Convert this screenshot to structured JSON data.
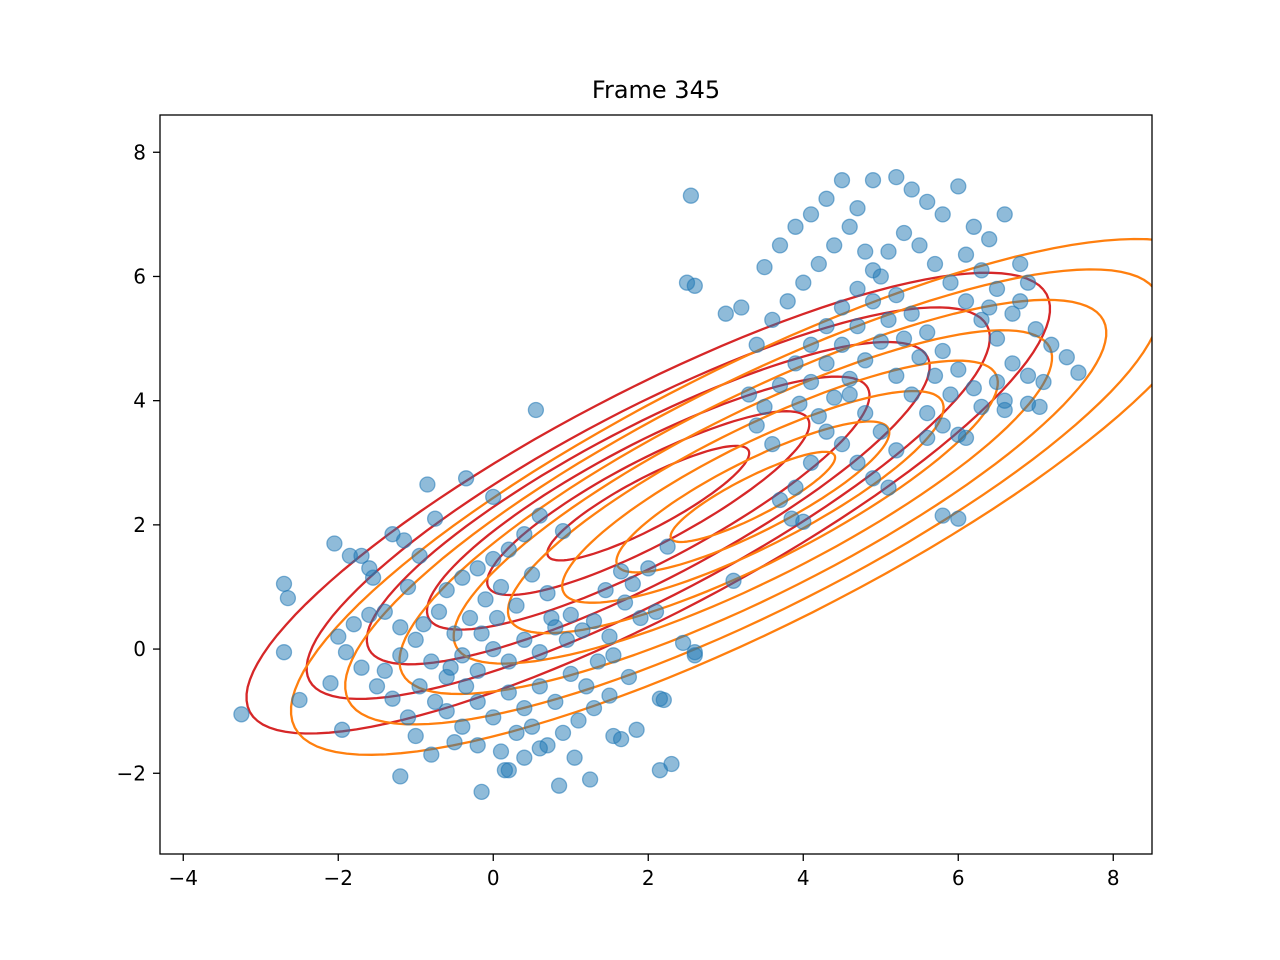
{
  "chart_data": {
    "type": "scatter",
    "title": "Frame 345",
    "xlabel": "",
    "ylabel": "",
    "xlim": [
      -4.3,
      8.5
    ],
    "ylim": [
      -3.3,
      8.6
    ],
    "x_ticks": [
      -4,
      -2,
      0,
      2,
      4,
      6,
      8
    ],
    "y_ticks": [
      -2,
      0,
      2,
      4,
      6,
      8
    ],
    "x_tick_labels": [
      "−4",
      "−2",
      "0",
      "2",
      "4",
      "6",
      "8"
    ],
    "y_tick_labels": [
      "−2",
      "0",
      "2",
      "4",
      "6",
      "8"
    ],
    "grid": false,
    "legend": "none",
    "colors": {
      "points": "#1f77b4",
      "contour_a": "#d62728",
      "contour_b": "#ff7f0e",
      "axes": "#000000"
    },
    "series": [
      {
        "values": [
          [
            -3.25,
            -1.05
          ],
          [
            -2.7,
            1.05
          ],
          [
            -2.65,
            0.82
          ],
          [
            -2.7,
            -0.05
          ],
          [
            -2.5,
            -0.82
          ],
          [
            -2.05,
            1.7
          ],
          [
            -1.85,
            1.5
          ],
          [
            -1.7,
            1.5
          ],
          [
            -1.6,
            1.3
          ],
          [
            -1.55,
            1.15
          ],
          [
            -1.3,
            1.85
          ],
          [
            -1.15,
            1.75
          ],
          [
            -0.95,
            1.5
          ],
          [
            -1.1,
            1.0
          ],
          [
            -0.85,
            2.65
          ],
          [
            -0.75,
            2.1
          ],
          [
            -2.0,
            0.2
          ],
          [
            -1.8,
            0.4
          ],
          [
            -1.6,
            0.55
          ],
          [
            -1.4,
            0.6
          ],
          [
            -1.9,
            -0.05
          ],
          [
            -1.7,
            -0.3
          ],
          [
            -1.5,
            -0.6
          ],
          [
            -1.3,
            -0.8
          ],
          [
            -1.1,
            -1.1
          ],
          [
            -1.0,
            -1.4
          ],
          [
            -0.8,
            -1.7
          ],
          [
            -1.2,
            -2.05
          ],
          [
            -1.95,
            -1.3
          ],
          [
            -2.1,
            -0.55
          ],
          [
            -0.6,
            0.95
          ],
          [
            -0.4,
            1.15
          ],
          [
            -0.2,
            1.3
          ],
          [
            0.0,
            1.45
          ],
          [
            0.2,
            1.6
          ],
          [
            0.4,
            1.85
          ],
          [
            0.6,
            2.15
          ],
          [
            0.9,
            1.9
          ],
          [
            0.0,
            2.45
          ],
          [
            -0.35,
            2.75
          ],
          [
            0.55,
            3.85
          ],
          [
            -0.9,
            0.4
          ],
          [
            -0.7,
            0.6
          ],
          [
            -0.5,
            0.25
          ],
          [
            -0.3,
            0.5
          ],
          [
            -0.1,
            0.8
          ],
          [
            0.1,
            1.0
          ],
          [
            0.3,
            0.7
          ],
          [
            0.5,
            1.2
          ],
          [
            0.7,
            0.9
          ],
          [
            -0.8,
            -0.2
          ],
          [
            -0.6,
            -0.45
          ],
          [
            -0.4,
            -0.1
          ],
          [
            -0.2,
            -0.35
          ],
          [
            0.0,
            0.0
          ],
          [
            0.2,
            -0.2
          ],
          [
            0.4,
            0.15
          ],
          [
            0.6,
            -0.05
          ],
          [
            0.8,
            0.35
          ],
          [
            1.0,
            0.55
          ],
          [
            -0.6,
            -1.0
          ],
          [
            -0.4,
            -1.25
          ],
          [
            -0.2,
            -0.85
          ],
          [
            0.0,
            -1.1
          ],
          [
            0.2,
            -0.7
          ],
          [
            0.4,
            -0.95
          ],
          [
            0.6,
            -0.6
          ],
          [
            0.8,
            -0.85
          ],
          [
            1.0,
            -0.4
          ],
          [
            1.2,
            -0.6
          ],
          [
            -0.5,
            -1.5
          ],
          [
            -0.2,
            -1.55
          ],
          [
            0.1,
            -1.65
          ],
          [
            0.3,
            -1.35
          ],
          [
            0.5,
            -1.25
          ],
          [
            0.7,
            -1.55
          ],
          [
            0.9,
            -1.35
          ],
          [
            1.1,
            -1.15
          ],
          [
            1.3,
            -0.95
          ],
          [
            1.5,
            -0.75
          ],
          [
            0.2,
            -1.95
          ],
          [
            0.4,
            -1.75
          ],
          [
            0.6,
            -1.6
          ],
          [
            -0.15,
            -2.3
          ],
          [
            0.15,
            -1.95
          ],
          [
            1.05,
            -1.75
          ],
          [
            1.55,
            -1.4
          ],
          [
            1.65,
            -1.45
          ],
          [
            1.85,
            -1.3
          ],
          [
            2.15,
            -1.95
          ],
          [
            2.3,
            -1.85
          ],
          [
            2.15,
            -0.8
          ],
          [
            2.2,
            -0.82
          ],
          [
            2.45,
            0.1
          ],
          [
            2.6,
            -0.05
          ],
          [
            2.6,
            -0.1
          ],
          [
            1.3,
            0.45
          ],
          [
            1.5,
            0.2
          ],
          [
            1.7,
            0.75
          ],
          [
            1.9,
            0.5
          ],
          [
            2.1,
            0.6
          ],
          [
            1.8,
            1.05
          ],
          [
            2.0,
            1.3
          ],
          [
            2.25,
            1.65
          ],
          [
            3.1,
            1.1
          ],
          [
            0.85,
            -2.2
          ],
          [
            1.25,
            -2.1
          ],
          [
            0.75,
            0.5
          ],
          [
            0.95,
            0.15
          ],
          [
            1.15,
            0.3
          ],
          [
            1.35,
            -0.2
          ],
          [
            1.55,
            -0.1
          ],
          [
            1.75,
            -0.45
          ],
          [
            1.45,
            0.95
          ],
          [
            1.65,
            1.25
          ],
          [
            -1.4,
            -0.35
          ],
          [
            -1.2,
            -0.1
          ],
          [
            -1.0,
            0.15
          ],
          [
            -1.2,
            0.35
          ],
          [
            -0.95,
            -0.6
          ],
          [
            -0.75,
            -0.85
          ],
          [
            -0.55,
            -0.3
          ],
          [
            -0.35,
            -0.6
          ],
          [
            -0.15,
            0.25
          ],
          [
            0.05,
            0.5
          ],
          [
            2.5,
            5.9
          ],
          [
            2.55,
            7.3
          ],
          [
            2.6,
            5.85
          ],
          [
            3.0,
            5.4
          ],
          [
            3.2,
            5.5
          ],
          [
            3.4,
            4.9
          ],
          [
            3.6,
            5.3
          ],
          [
            3.8,
            5.6
          ],
          [
            3.5,
            6.15
          ],
          [
            3.7,
            6.5
          ],
          [
            3.9,
            6.8
          ],
          [
            4.1,
            7.0
          ],
          [
            4.3,
            7.25
          ],
          [
            4.5,
            7.55
          ],
          [
            4.7,
            7.1
          ],
          [
            4.9,
            7.55
          ],
          [
            5.2,
            7.6
          ],
          [
            5.4,
            7.4
          ],
          [
            5.6,
            7.2
          ],
          [
            5.8,
            7.0
          ],
          [
            6.0,
            7.45
          ],
          [
            6.2,
            6.8
          ],
          [
            6.4,
            6.6
          ],
          [
            6.6,
            7.0
          ],
          [
            6.8,
            6.2
          ],
          [
            7.0,
            5.15
          ],
          [
            7.2,
            4.9
          ],
          [
            7.4,
            4.7
          ],
          [
            7.55,
            4.45
          ],
          [
            7.1,
            4.3
          ],
          [
            6.9,
            3.95
          ],
          [
            7.05,
            3.9
          ],
          [
            6.6,
            3.85
          ],
          [
            6.3,
            3.9
          ],
          [
            6.1,
            3.4
          ],
          [
            5.8,
            2.15
          ],
          [
            6.0,
            2.1
          ],
          [
            4.7,
            3.0
          ],
          [
            4.9,
            2.75
          ],
          [
            5.1,
            2.6
          ],
          [
            4.5,
            3.3
          ],
          [
            4.3,
            3.5
          ],
          [
            4.1,
            3.0
          ],
          [
            3.9,
            2.6
          ],
          [
            3.7,
            2.4
          ],
          [
            3.85,
            2.1
          ],
          [
            4.0,
            2.05
          ],
          [
            3.6,
            3.3
          ],
          [
            3.4,
            3.6
          ],
          [
            3.3,
            4.1
          ],
          [
            3.5,
            3.9
          ],
          [
            3.7,
            4.25
          ],
          [
            3.9,
            4.6
          ],
          [
            4.1,
            4.9
          ],
          [
            4.3,
            5.2
          ],
          [
            4.5,
            5.5
          ],
          [
            4.7,
            5.8
          ],
          [
            4.9,
            6.1
          ],
          [
            5.1,
            6.4
          ],
          [
            5.3,
            6.7
          ],
          [
            5.5,
            6.5
          ],
          [
            5.7,
            6.2
          ],
          [
            5.9,
            5.9
          ],
          [
            6.1,
            5.6
          ],
          [
            6.3,
            5.3
          ],
          [
            6.5,
            5.0
          ],
          [
            6.7,
            5.4
          ],
          [
            6.5,
            5.8
          ],
          [
            6.3,
            6.1
          ],
          [
            6.1,
            6.35
          ],
          [
            4.0,
            5.9
          ],
          [
            4.2,
            6.2
          ],
          [
            4.4,
            6.5
          ],
          [
            4.6,
            6.8
          ],
          [
            4.8,
            6.4
          ],
          [
            5.0,
            6.0
          ],
          [
            5.2,
            5.7
          ],
          [
            5.4,
            5.4
          ],
          [
            5.6,
            5.1
          ],
          [
            5.8,
            4.8
          ],
          [
            6.0,
            4.5
          ],
          [
            6.2,
            4.2
          ],
          [
            5.9,
            4.1
          ],
          [
            5.7,
            4.4
          ],
          [
            5.5,
            4.7
          ],
          [
            5.3,
            5.0
          ],
          [
            5.1,
            5.3
          ],
          [
            4.9,
            5.6
          ],
          [
            4.7,
            5.2
          ],
          [
            4.5,
            4.9
          ],
          [
            4.3,
            4.6
          ],
          [
            4.1,
            4.3
          ],
          [
            3.95,
            3.95
          ],
          [
            4.2,
            3.75
          ],
          [
            4.4,
            4.05
          ],
          [
            4.6,
            4.35
          ],
          [
            4.8,
            4.65
          ],
          [
            5.0,
            4.95
          ],
          [
            5.2,
            4.4
          ],
          [
            5.4,
            4.1
          ],
          [
            5.6,
            3.8
          ],
          [
            5.8,
            3.6
          ],
          [
            6.0,
            3.45
          ],
          [
            5.6,
            3.4
          ],
          [
            5.2,
            3.2
          ],
          [
            5.0,
            3.5
          ],
          [
            4.8,
            3.8
          ],
          [
            4.6,
            4.1
          ],
          [
            6.5,
            4.3
          ],
          [
            6.7,
            4.6
          ],
          [
            6.9,
            4.4
          ],
          [
            6.6,
            4.0
          ],
          [
            6.4,
            5.5
          ],
          [
            6.8,
            5.6
          ],
          [
            6.9,
            5.9
          ]
        ]
      }
    ]
  }
}
